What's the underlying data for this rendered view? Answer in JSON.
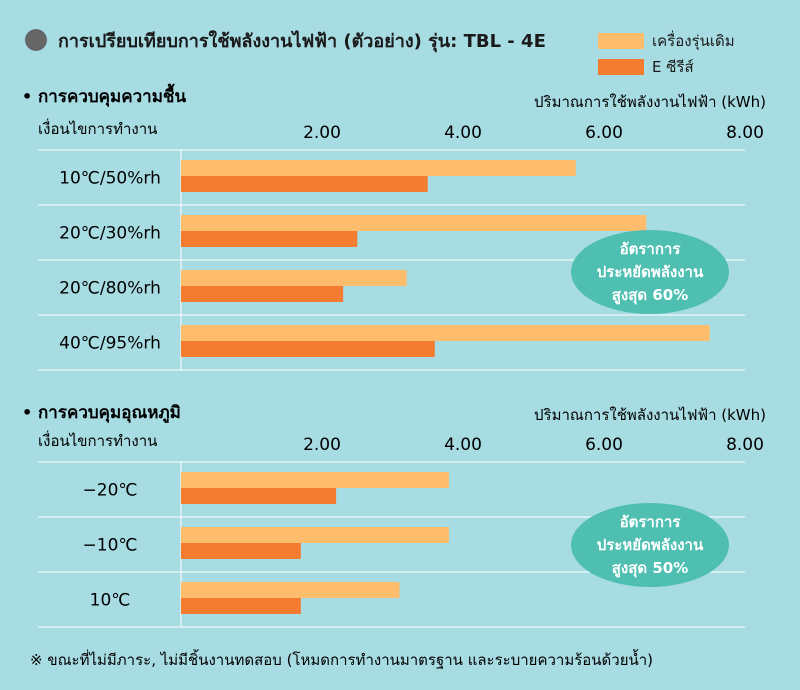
{
  "header": {
    "title": "การเปรียบเทียบการใช้พลังงานไฟฟ้า (ตัวอย่าง) รุ่น: TBL - 4E"
  },
  "legend": {
    "items": [
      {
        "label": "เครื่องรุ่นเดิม",
        "color": "#fdbd6c"
      },
      {
        "label": "E ซีรีส์",
        "color": "#f47c30"
      }
    ]
  },
  "colors": {
    "background": "#a7dce3",
    "previous_model": "#fdbd6c",
    "e_series": "#f47c30",
    "badge": "#4fbfb2"
  },
  "chart_data": [
    {
      "type": "bar",
      "orientation": "horizontal",
      "title": "การควบคุมความชื้น",
      "ylabel": "เงื่อนไขการทำงาน",
      "xlabel": "ปริมาณการใช้พลังงานไฟฟ้า (kWh)",
      "xticks": [
        "2.00",
        "4.00",
        "6.00",
        "8.00"
      ],
      "xlim": [
        0,
        8
      ],
      "categories": [
        "10℃/50%rh",
        "20℃/30%rh",
        "20℃/80%rh",
        "40℃/95%rh"
      ],
      "series": [
        {
          "name": "เครื่องรุ่นเดิม",
          "color": "#fdbd6c",
          "values": [
            5.6,
            6.6,
            3.2,
            7.5
          ]
        },
        {
          "name": "E ซีรีส์",
          "color": "#f47c30",
          "values": [
            3.5,
            2.5,
            2.3,
            3.6
          ]
        }
      ],
      "badge": [
        "อัตราการ",
        "ประหยัดพลังงาน",
        "สูงสุด 60%"
      ]
    },
    {
      "type": "bar",
      "orientation": "horizontal",
      "title": "การควบคุมอุณหภูมิ",
      "ylabel": "เงื่อนไขการทำงาน",
      "xlabel": "ปริมาณการใช้พลังงานไฟฟ้า (kWh)",
      "xticks": [
        "2.00",
        "4.00",
        "6.00",
        "8.00"
      ],
      "xlim": [
        0,
        8
      ],
      "categories": [
        "−20℃",
        "−10℃",
        "10℃"
      ],
      "series": [
        {
          "name": "เครื่องรุ่นเดิม",
          "color": "#fdbd6c",
          "values": [
            3.8,
            3.8,
            3.1
          ]
        },
        {
          "name": "E ซีรีส์",
          "color": "#f47c30",
          "values": [
            2.2,
            1.7,
            1.7
          ]
        }
      ],
      "badge": [
        "อัตราการ",
        "ประหยัดพลังงาน",
        "สูงสุด 50%"
      ]
    }
  ],
  "footnote": "※ ขณะที่ไม่มีภาระ, ไม่มีชิ้นงานทดสอบ (โหมดการทำงานมาตรฐาน และระบายความร้อนด้วยน้ำ)"
}
